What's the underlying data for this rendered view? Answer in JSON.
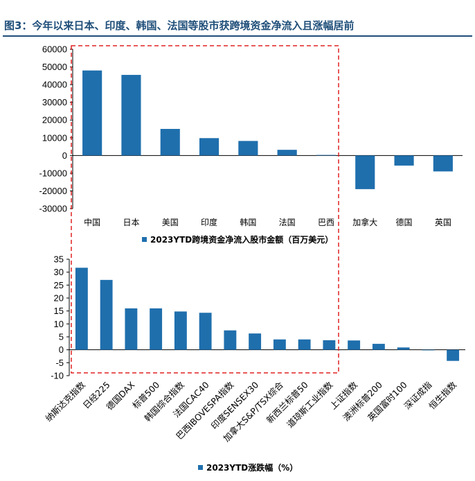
{
  "figure": {
    "title": "图3：今年以来日本、印度、韩国、法国等股市获跨境资金净流入且涨幅居前",
    "bar_color": "#1f6fad",
    "title_color": "#1f4e79",
    "rule_color": "#1f4e79",
    "highlight_color": "#e02020"
  },
  "chart_data": [
    {
      "type": "bar",
      "categories": [
        "中国",
        "日本",
        "美国",
        "印度",
        "韩国",
        "法国",
        "巴西",
        "加拿大",
        "德国",
        "英国"
      ],
      "series": [
        {
          "name": "2023YTD跨境资金净流入股市金额（百万美元）",
          "values": [
            48000,
            45500,
            15000,
            9800,
            8200,
            3200,
            300,
            -19000,
            -5700,
            -9000
          ]
        }
      ],
      "ylim": [
        -30000,
        60000
      ],
      "yticks": [
        -30000,
        -20000,
        -10000,
        0,
        10000,
        20000,
        30000,
        40000,
        50000,
        60000
      ],
      "legend": "bottom"
    },
    {
      "type": "bar",
      "categories": [
        "纳斯达克指数",
        "日经225",
        "德国DAX",
        "标普500",
        "韩国综合指数",
        "法国CAC40",
        "巴西IBOVESPA指数",
        "印度SENSEX30",
        "加拿大S&P/TSX综合",
        "新西兰标普50",
        "道琼斯工业指数",
        "上证指数",
        "澳洲标普200",
        "英国富时100",
        "深证成指",
        "恒生指数"
      ],
      "series": [
        {
          "name": "2023YTD涨跌幅（%）",
          "values": [
            31.7,
            27.0,
            16.0,
            16.0,
            14.8,
            14.3,
            7.5,
            6.3,
            4.0,
            4.0,
            3.7,
            3.6,
            2.3,
            0.9,
            -0.1,
            -4.3
          ]
        }
      ],
      "ylim": [
        -10,
        35
      ],
      "yticks": [
        -10,
        -5,
        0,
        5,
        10,
        15,
        20,
        25,
        30,
        35
      ],
      "legend": "bottom"
    }
  ]
}
